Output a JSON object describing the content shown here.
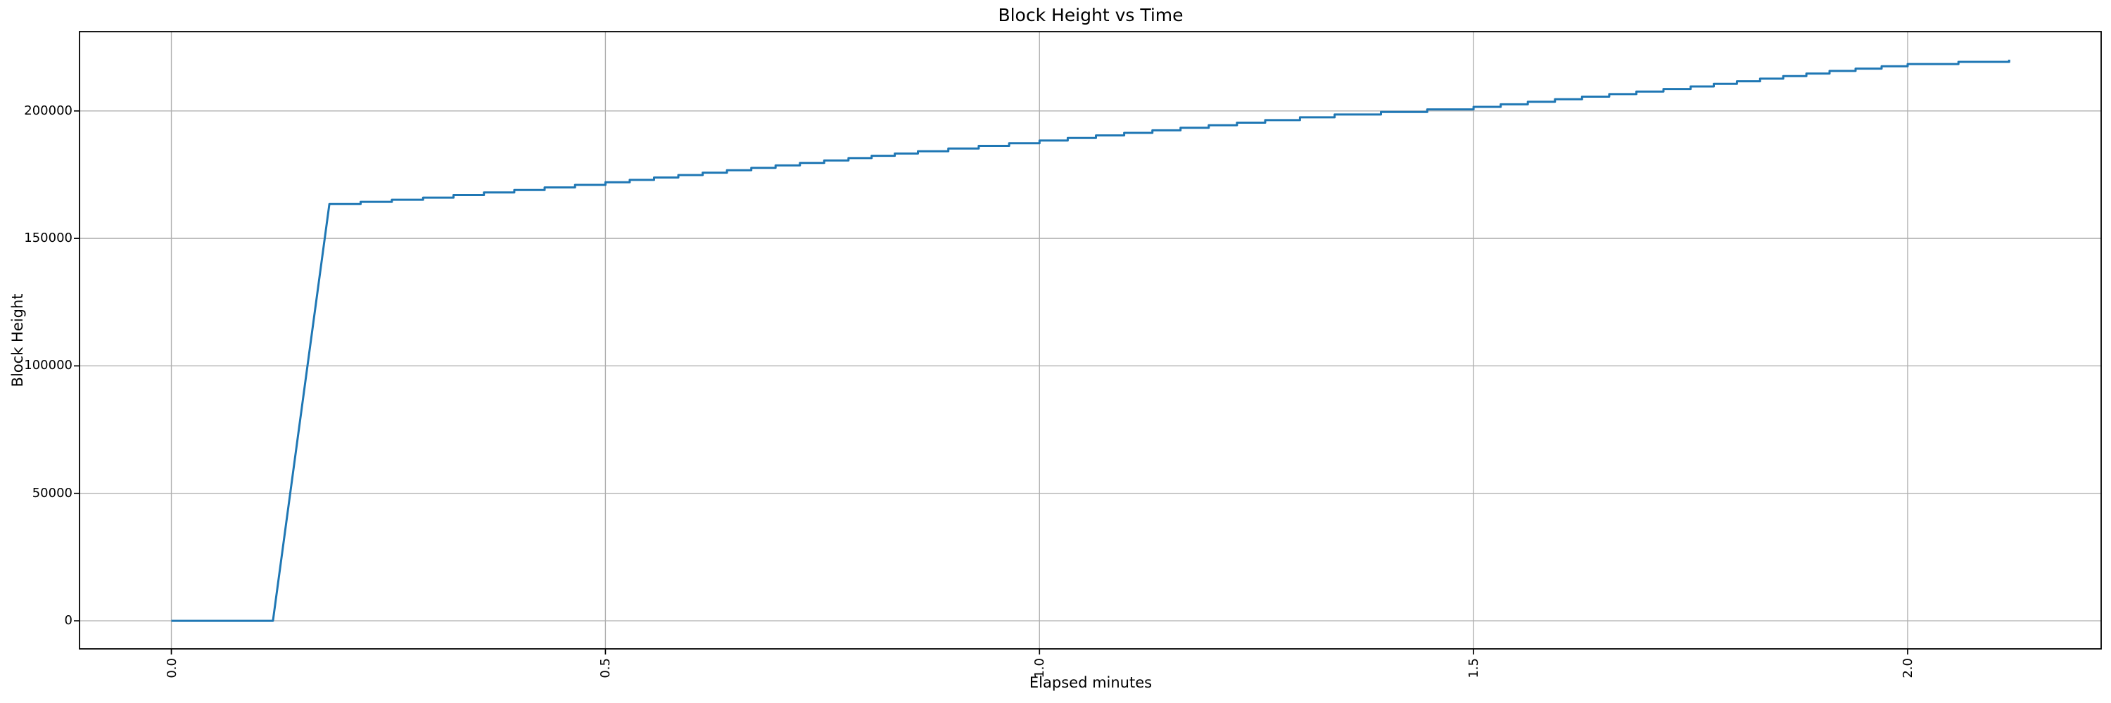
{
  "chart_data": {
    "type": "line",
    "title": "Block Height vs Time",
    "xlabel": "Elapsed minutes",
    "ylabel": "Block Height",
    "grid": true,
    "legend": false,
    "x_ticks": {
      "values": [
        0.0,
        0.5,
        1.0,
        1.5,
        2.0
      ],
      "labels": [
        "0.0",
        "0.5",
        "1.0",
        "1.5",
        "2.0"
      ],
      "rotation": 90
    },
    "y_ticks": {
      "values": [
        0,
        50000,
        100000,
        150000,
        200000
      ],
      "labels": [
        "0",
        "50000",
        "100000",
        "150000",
        "200000"
      ]
    },
    "xlim": [
      -0.1058,
      2.2229
    ],
    "ylim": [
      -11005,
      231105
    ],
    "colors": {
      "line": "#1f77b4",
      "grid": "#b0b0b0",
      "spine": "#000000",
      "text": "#000000",
      "background": "#ffffff"
    },
    "step_quantum": 1000,
    "series": [
      {
        "name": "block_height",
        "points": [
          [
            0.0,
            0
          ],
          [
            0.117,
            0
          ],
          [
            0.182,
            163500
          ],
          [
            0.29,
            166000
          ],
          [
            0.5,
            172000
          ],
          [
            0.78,
            181500
          ],
          [
            0.86,
            184200
          ],
          [
            1.0,
            188400
          ],
          [
            1.26,
            196400
          ],
          [
            1.34,
            198600
          ],
          [
            1.5,
            201600
          ],
          [
            1.75,
            209600
          ],
          [
            1.91,
            215700
          ],
          [
            2.0,
            218400
          ],
          [
            2.117,
            220100
          ]
        ]
      }
    ]
  }
}
